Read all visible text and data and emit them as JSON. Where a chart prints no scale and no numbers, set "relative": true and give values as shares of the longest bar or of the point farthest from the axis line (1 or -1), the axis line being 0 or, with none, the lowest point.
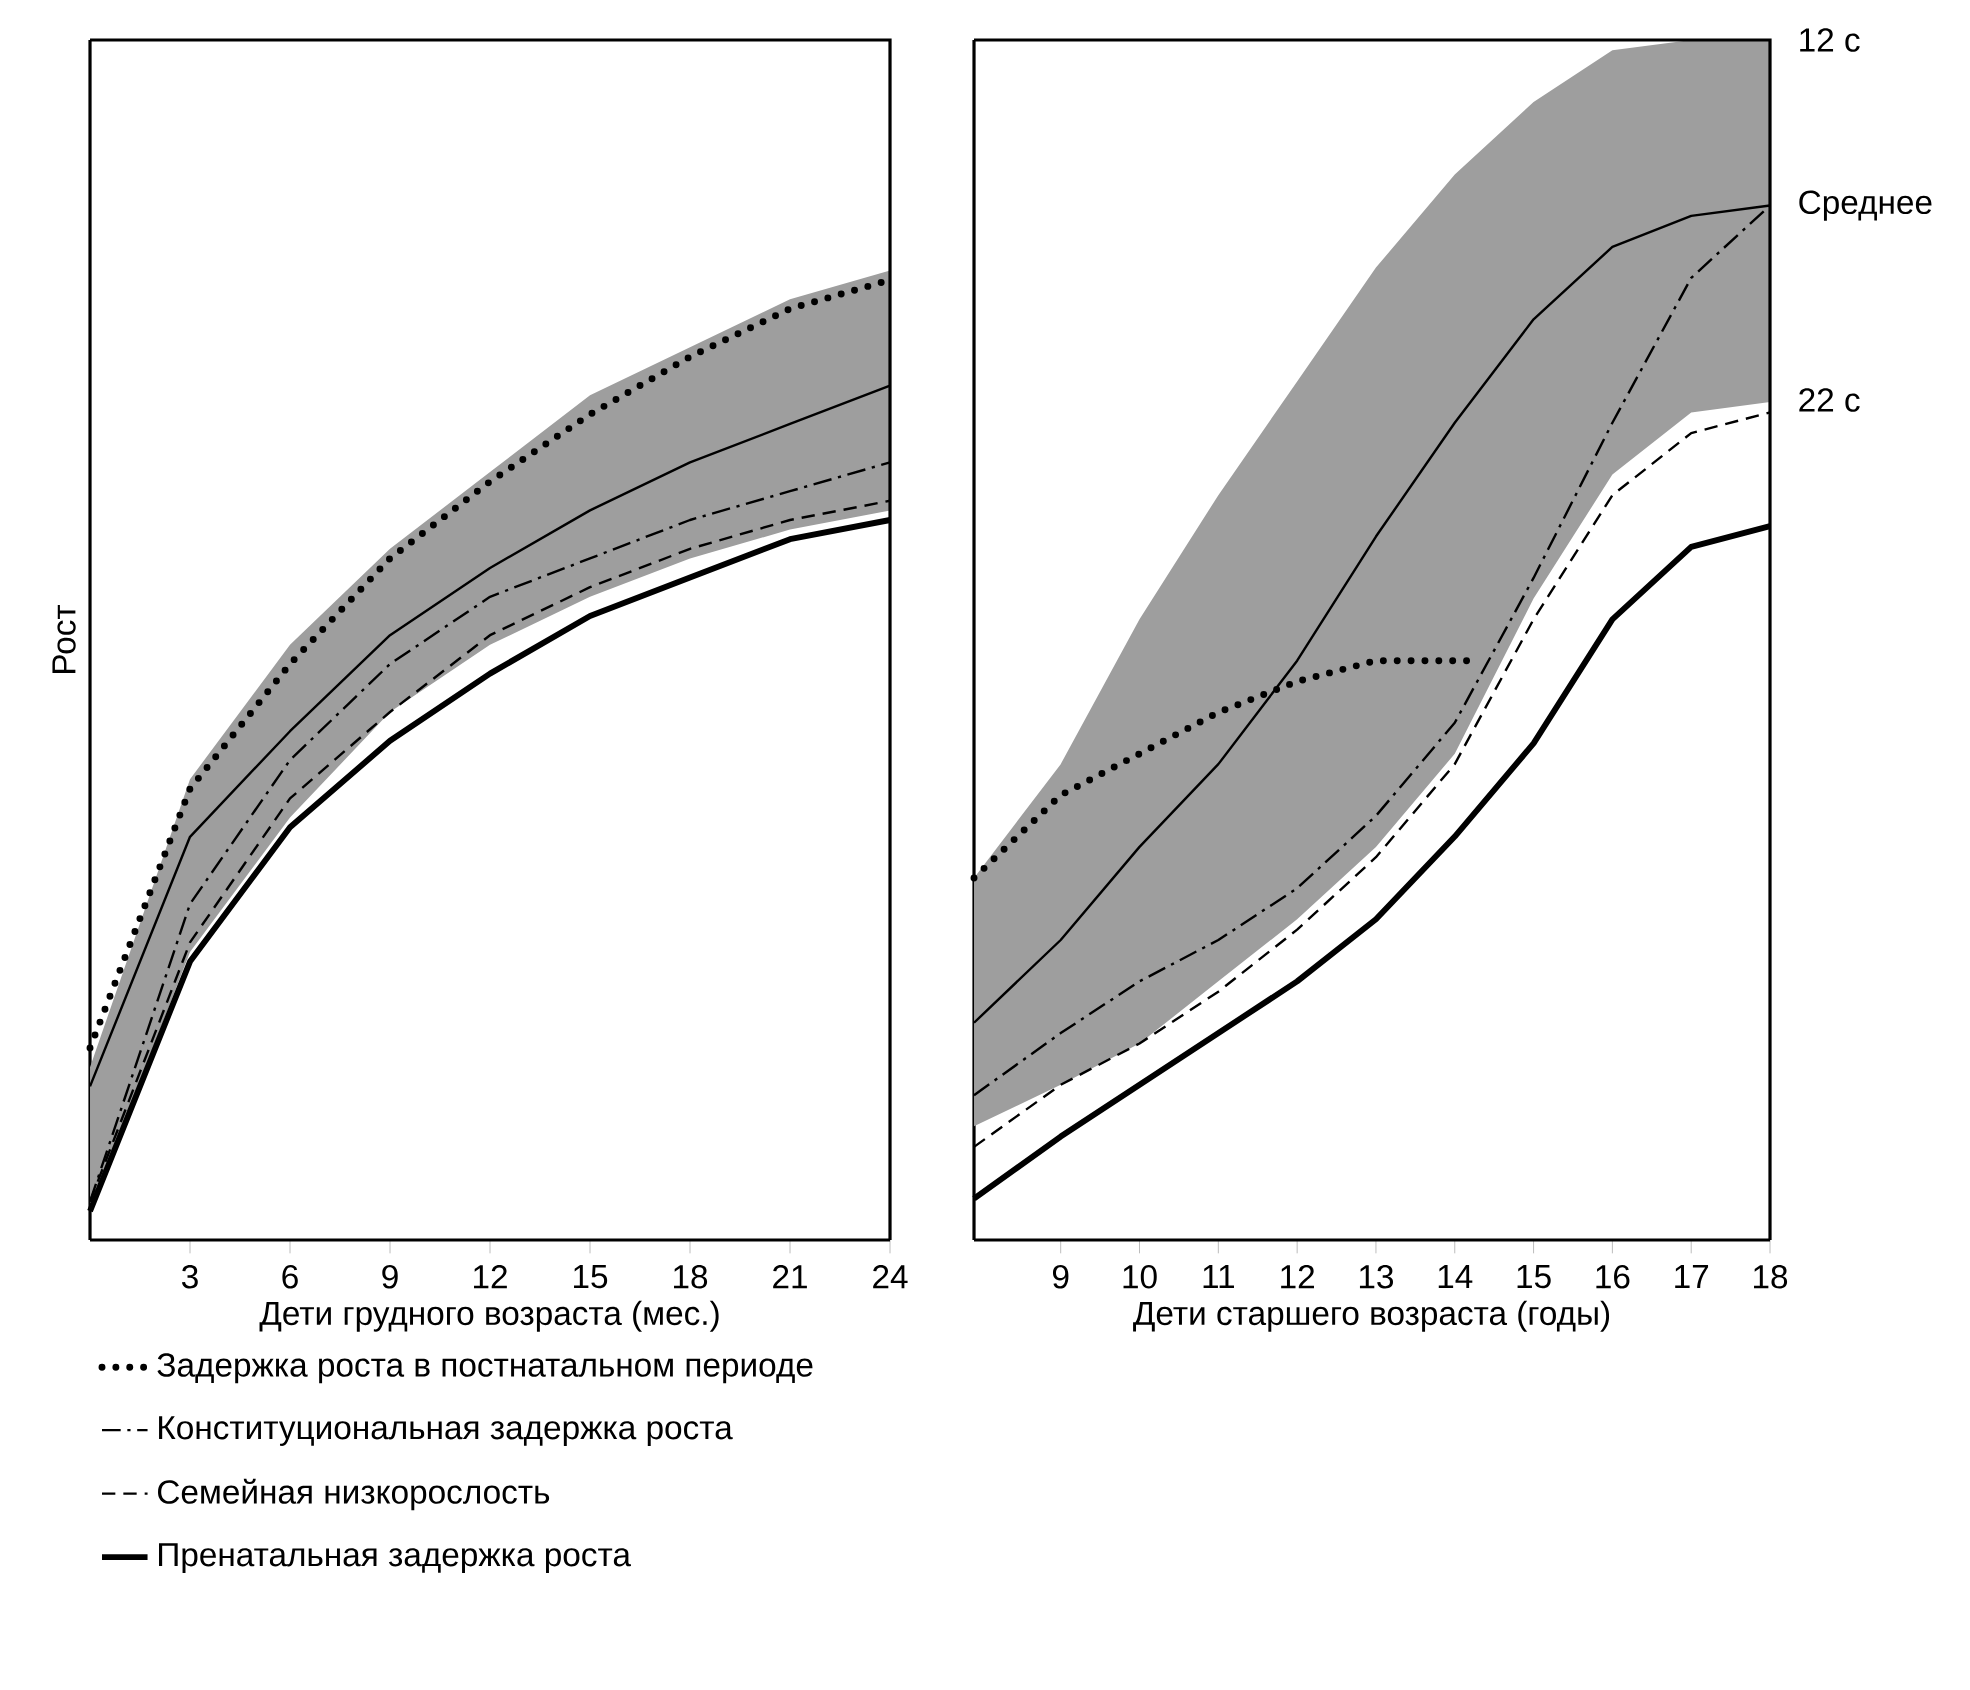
{
  "chart_data": [
    {
      "type": "line",
      "relative": true,
      "xlabel": "Дети грудного возраста (мес.)",
      "ylabel": "Рост",
      "xlim": [
        0,
        24
      ],
      "xticks": [
        3,
        6,
        9,
        12,
        15,
        18,
        21,
        24
      ],
      "x": [
        0,
        3,
        6,
        9,
        12,
        15,
        18,
        21,
        24
      ],
      "legend": "bottom left",
      "series": [
        {
          "color": "#000000",
          "line_style": "solid",
          "values": [
            0.16,
            0.42,
            0.53,
            0.63,
            0.7,
            0.76,
            0.81,
            0.85,
            0.89
          ],
          "lower": [
            0.03,
            0.3,
            0.44,
            0.55,
            0.62,
            0.67,
            0.71,
            0.74,
            0.76
          ],
          "upper": [
            0.18,
            0.48,
            0.62,
            0.72,
            0.8,
            0.88,
            0.93,
            0.98,
            1.01
          ]
        },
        {
          "name": "Задержка роста в постнатальном периоде",
          "color": "#000000",
          "line_style": "dotted",
          "values": [
            0.2,
            0.47,
            0.6,
            0.71,
            0.79,
            0.86,
            0.92,
            0.97,
            1.0
          ]
        },
        {
          "name": "Конституциональная задержка роста",
          "color": "#000000",
          "line_style": "dashdot",
          "values": [
            0.04,
            0.35,
            0.5,
            0.6,
            0.67,
            0.71,
            0.75,
            0.78,
            0.81
          ]
        },
        {
          "name": "Семейная низкорослость",
          "color": "#000000",
          "line_style": "dashed",
          "values": [
            0.04,
            0.31,
            0.46,
            0.55,
            0.63,
            0.68,
            0.72,
            0.75,
            0.77
          ]
        },
        {
          "name": "Пренатальная задержка роста",
          "color": "#000000",
          "line_style": "solid",
          "values": [
            0.03,
            0.29,
            0.43,
            0.52,
            0.59,
            0.65,
            0.69,
            0.73,
            0.75
          ]
        }
      ]
    },
    {
      "type": "line",
      "relative": true,
      "xlabel": "Дети старшего возраста (годы)",
      "xlim": [
        7.9,
        18
      ],
      "xticks": [
        9,
        10,
        11,
        12,
        13,
        14,
        15,
        16,
        17,
        18
      ],
      "x": [
        7.9,
        9,
        10,
        11,
        12,
        13,
        14,
        15,
        16,
        17,
        18
      ],
      "annotations": [
        "12 с",
        "Среднее",
        "22 с"
      ],
      "series": [
        {
          "color": "#000000",
          "line_style": "solid",
          "values": [
            0.21,
            0.29,
            0.38,
            0.46,
            0.56,
            0.68,
            0.79,
            0.89,
            0.96,
            0.99,
            1.0
          ],
          "lower": [
            0.11,
            0.15,
            0.19,
            0.25,
            0.31,
            0.38,
            0.47,
            0.62,
            0.74,
            0.8,
            0.81
          ],
          "upper": [
            0.35,
            0.46,
            0.6,
            0.72,
            0.83,
            0.94,
            1.03,
            1.1,
            1.15,
            1.16,
            1.16
          ]
        },
        {
          "color": "#000000",
          "line_style": "dotted",
          "x": [
            7.9,
            9,
            10,
            11,
            12,
            13,
            14,
            14.3
          ],
          "values": [
            0.35,
            0.43,
            0.47,
            0.51,
            0.54,
            0.56,
            0.56,
            0.56
          ]
        },
        {
          "color": "#000000",
          "line_style": "dashdot",
          "values": [
            0.14,
            0.2,
            0.25,
            0.29,
            0.34,
            0.41,
            0.5,
            0.64,
            0.79,
            0.93,
            1.0
          ]
        },
        {
          "color": "#000000",
          "line_style": "dashed",
          "values": [
            0.09,
            0.15,
            0.19,
            0.24,
            0.3,
            0.37,
            0.46,
            0.6,
            0.72,
            0.78,
            0.8
          ]
        },
        {
          "color": "#000000",
          "line_style": "solid",
          "values": [
            0.04,
            0.1,
            0.15,
            0.2,
            0.25,
            0.31,
            0.39,
            0.48,
            0.6,
            0.67,
            0.69
          ]
        }
      ]
    }
  ]
}
